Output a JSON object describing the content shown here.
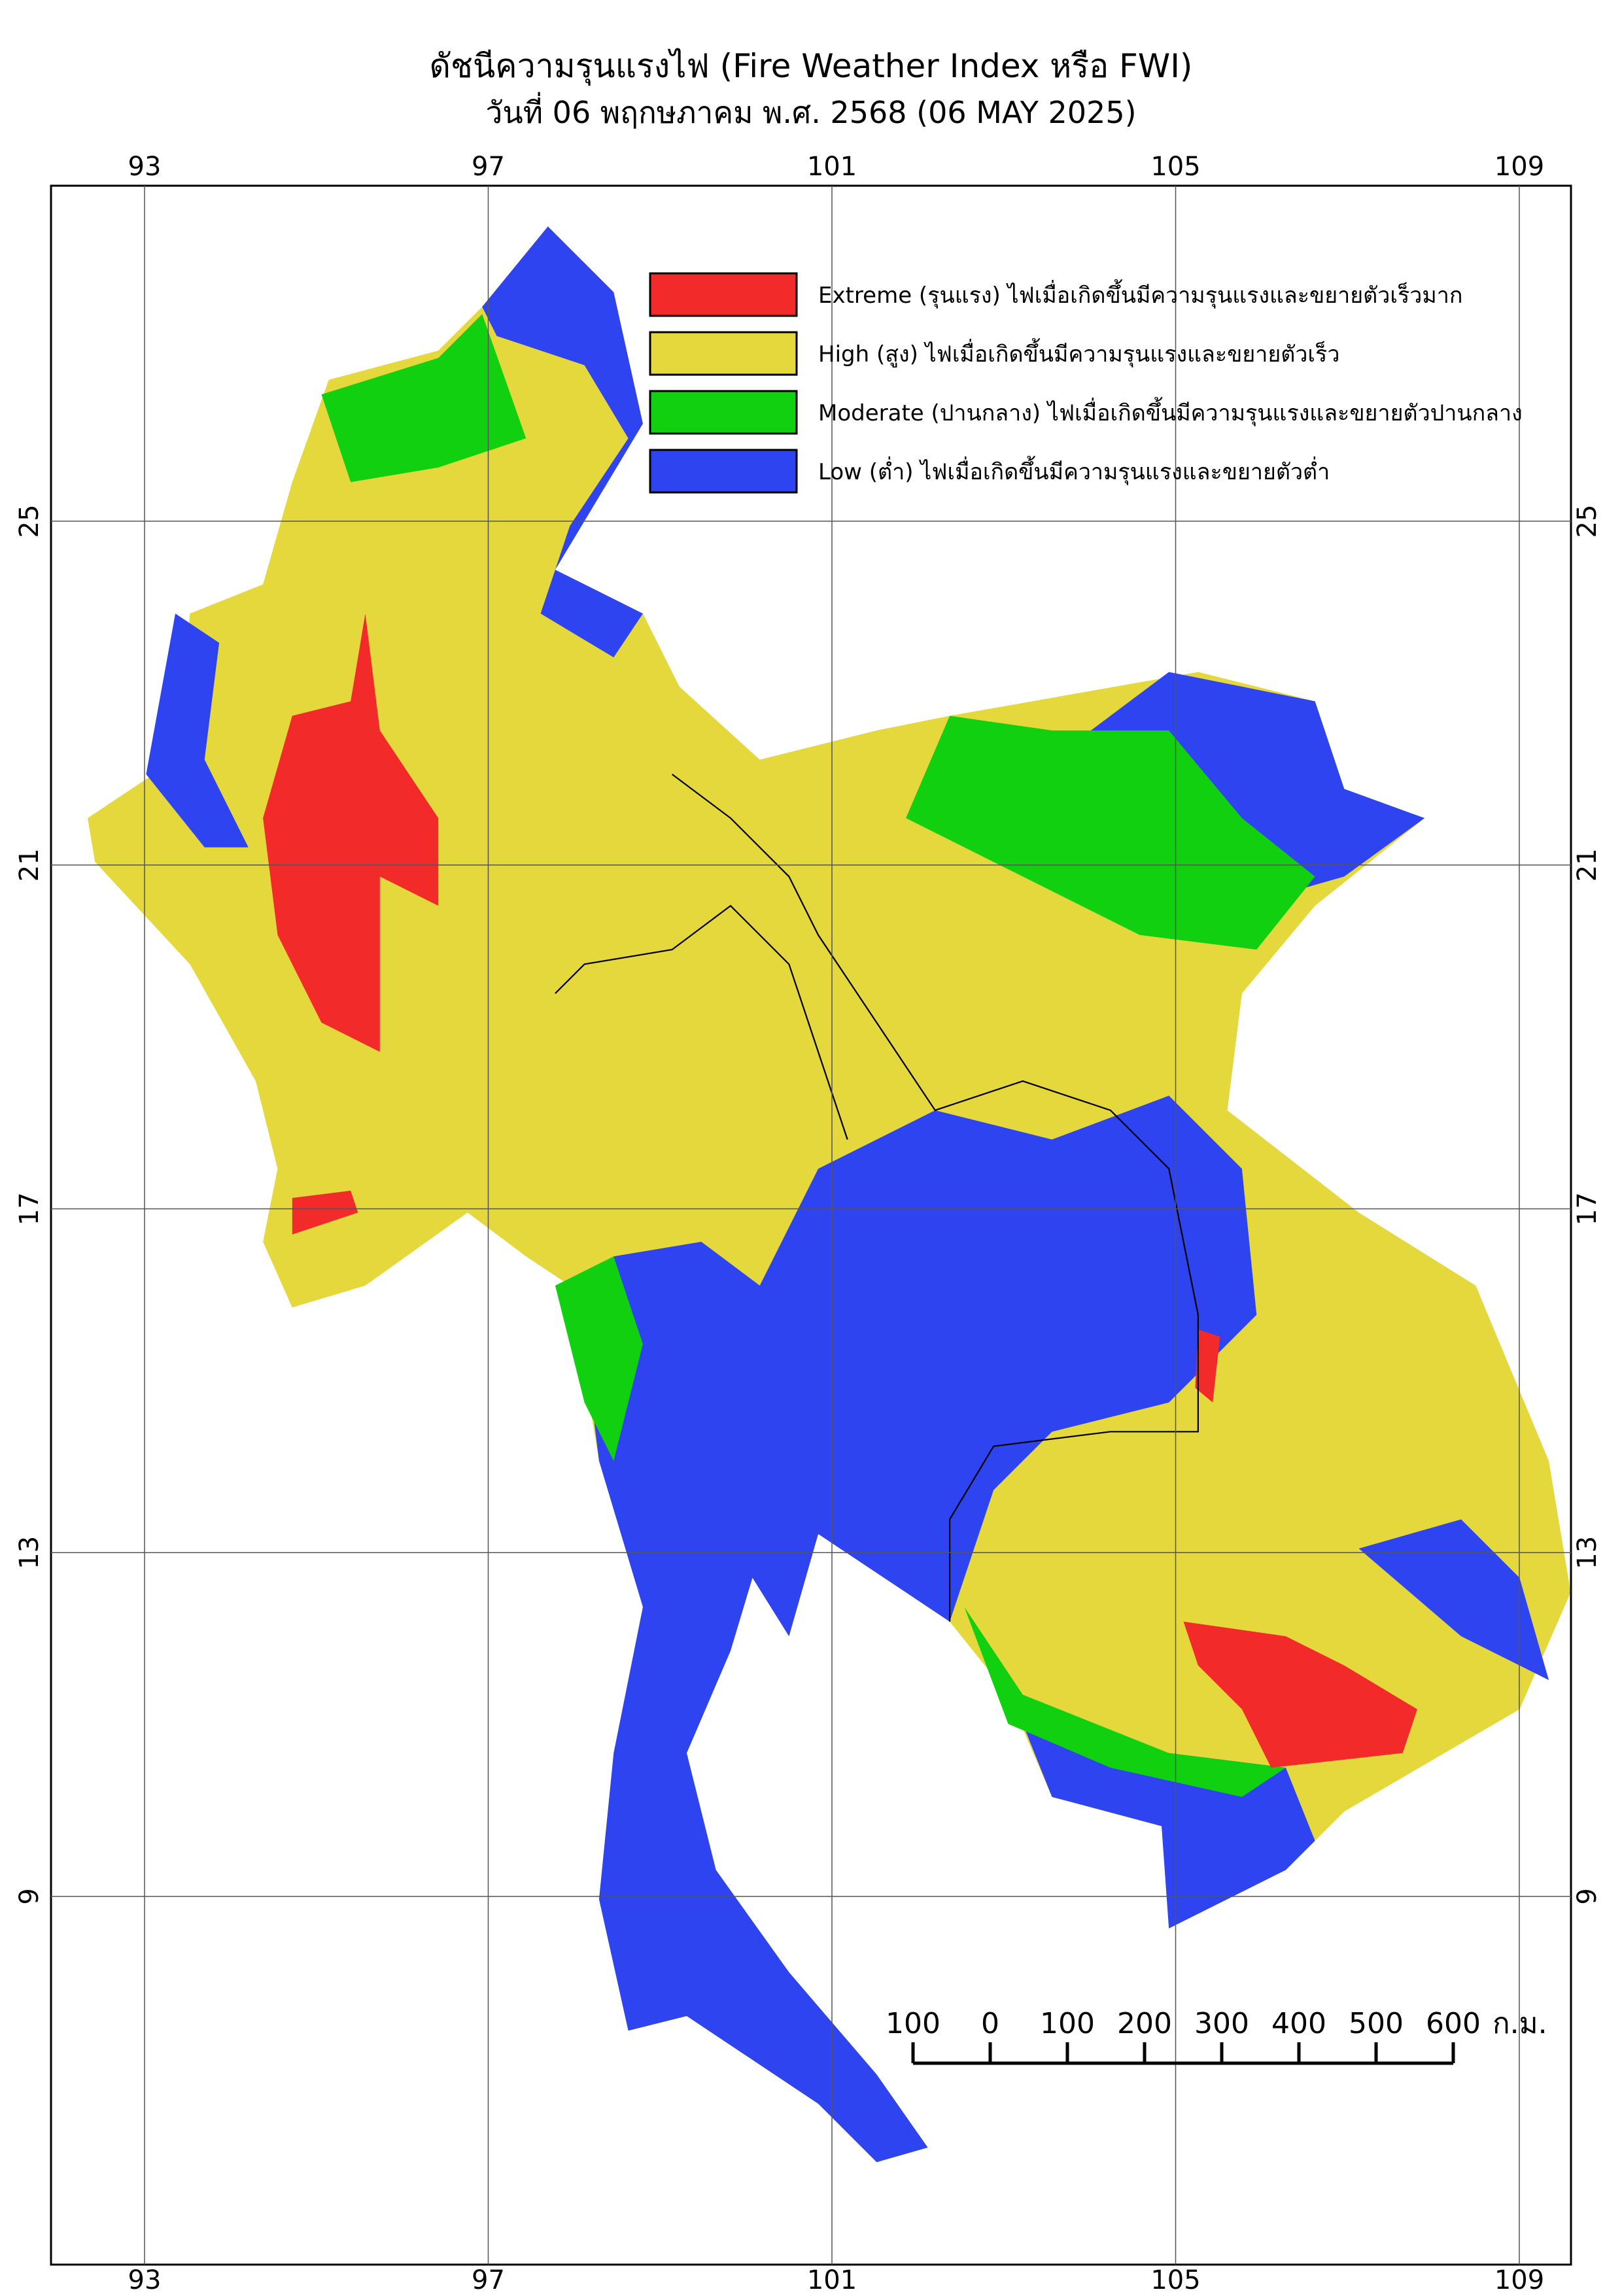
{
  "header": {
    "title": "ดัชนีความรุนแรงไฟ (Fire Weather Index หรือ FWI)",
    "subtitle": "วันที่ 06 พฤกษภาคม พ.ศ. 2568 (06 MAY 2025)"
  },
  "map": {
    "longitudes": [
      "93",
      "97",
      "101",
      "105",
      "109"
    ],
    "latitudes": [
      "25",
      "21",
      "17",
      "13",
      "9"
    ],
    "legend": [
      {
        "label": "Extreme (รุนแรง) ไฟเมื่อเกิดขึ้นมีความรุนแรงและขยายตัวเร็วมาก",
        "color": "#f22a2a"
      },
      {
        "label": "High (สูง) ไฟเมื่อเกิดขึ้นมีความรุนแรงและขยายตัวเร็ว",
        "color": "#e4d83c"
      },
      {
        "label": "Moderate (ปานกลาง) ไฟเมื่อเกิดขึ้นมีความรุนแรงและขยายตัวปานกลาง",
        "color": "#10d010"
      },
      {
        "label": "Low (ต่ำ) ไฟเมื่อเกิดขึ้นมีความรุนแรงและขยายตัวต่ำ",
        "color": "#2e44f0"
      }
    ],
    "scale_bar": {
      "labels": [
        "100",
        "0",
        "100",
        "200",
        "300",
        "400",
        "500",
        "600"
      ],
      "unit": "ก.ม."
    }
  }
}
